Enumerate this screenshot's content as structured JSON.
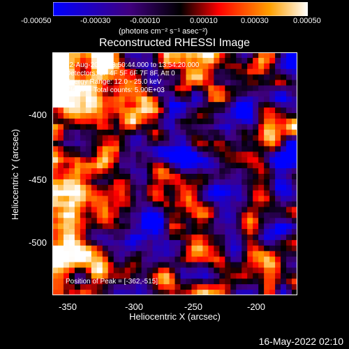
{
  "colorbar": {
    "ticks": [
      "-0.00050",
      "-0.00030",
      "-0.00010",
      "0.00010",
      "0.00030",
      "0.00050"
    ],
    "unit_label": "(photons cm⁻² s⁻¹ asec⁻²)"
  },
  "chart_data": {
    "type": "heatmap",
    "title": "Reconstructed RHESSI Image",
    "xlabel": "Heliocentric X (arcsec)",
    "ylabel": "Heliocentric Y (arcsec)",
    "xlim": [
      -360,
      -270
    ],
    "ylim": [
      -545,
      -365
    ],
    "x_ticks": [
      "-350",
      "-300",
      "-250",
      "-200"
    ],
    "y_ticks": [
      "-400",
      "-450",
      "-500"
    ],
    "colorbar_range": [
      -0.0005,
      0.0005
    ],
    "colormap": [
      "#0000ff",
      "#400080",
      "#000000",
      "#ff0000",
      "#ffa000",
      "#ffffff"
    ],
    "annotations": {
      "time": "12-Aug-2013 13:50:44.000 to 13:54:20.000",
      "detectors": "Detectors: 3F 4F 5F 6F 7F 8F, Att 0",
      "energy": "Energy Range: 12.0 - 25.0 keV",
      "clean": "Clean     Total counts: 5.90E+03",
      "peak": "Position of Peak = [-362,-515]"
    }
  },
  "footer": {
    "date": "16-May-2022 02:10"
  }
}
